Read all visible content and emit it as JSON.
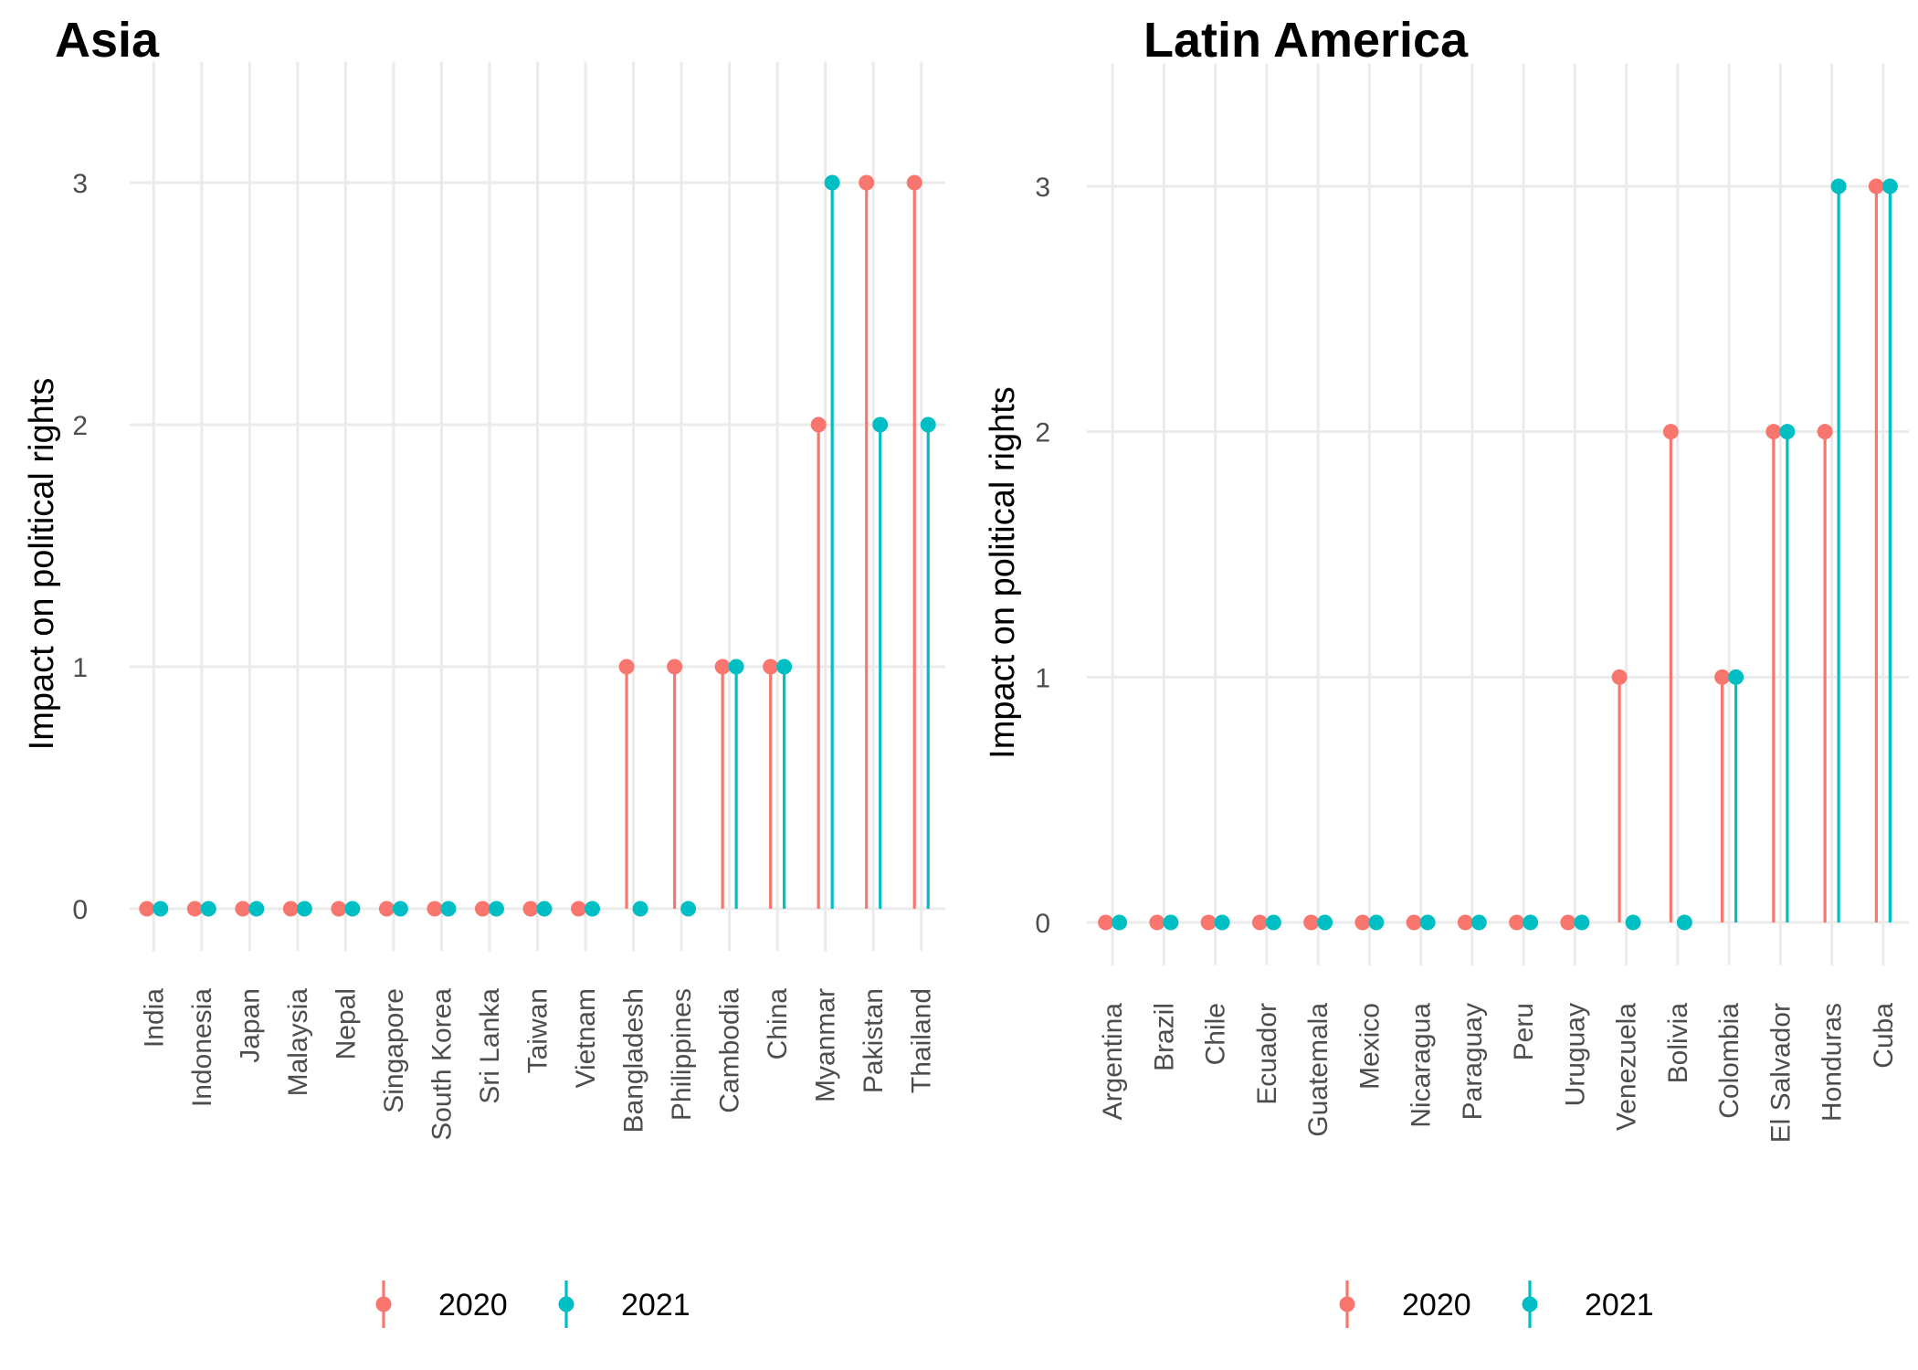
{
  "colors": {
    "s2020": "#F8766D",
    "s2021": "#00BFC4",
    "grid": "#EBEBEB"
  },
  "chart_data": [
    {
      "type": "lollipop",
      "title": "Asia",
      "xlabel": "",
      "ylabel": "Impact on political rights",
      "ylim": [
        -0.1,
        3.5
      ],
      "yticks": [
        0,
        1,
        2,
        3
      ],
      "grid": true,
      "legend": "bottom",
      "categories": [
        "India",
        "Indonesia",
        "Japan",
        "Malaysia",
        "Nepal",
        "Singapore",
        "South Korea",
        "Sri Lanka",
        "Taiwan",
        "Vietnam",
        "Bangladesh",
        "Philippines",
        "Cambodia",
        "China",
        "Myanmar",
        "Pakistan",
        "Thailand"
      ],
      "series": [
        {
          "name": "2020",
          "values": [
            0,
            0,
            0,
            0,
            0,
            0,
            0,
            0,
            0,
            0,
            1,
            1,
            1,
            1,
            2,
            3,
            3
          ]
        },
        {
          "name": "2021",
          "values": [
            0,
            0,
            0,
            0,
            0,
            0,
            0,
            0,
            0,
            0,
            0,
            0,
            1,
            1,
            3,
            2,
            2
          ]
        }
      ]
    },
    {
      "type": "lollipop",
      "title": "Latin America",
      "xlabel": "",
      "ylabel": "Impact on political rights",
      "ylim": [
        -0.1,
        3.5
      ],
      "yticks": [
        0,
        1,
        2,
        3
      ],
      "grid": true,
      "legend": "bottom",
      "categories": [
        "Argentina",
        "Brazil",
        "Chile",
        "Ecuador",
        "Guatemala",
        "Mexico",
        "Nicaragua",
        "Paraguay",
        "Peru",
        "Uruguay",
        "Venezuela",
        "Bolivia",
        "Colombia",
        "El Salvador",
        "Honduras",
        "Cuba"
      ],
      "series": [
        {
          "name": "2020",
          "values": [
            0,
            0,
            0,
            0,
            0,
            0,
            0,
            0,
            0,
            0,
            1,
            2,
            1,
            2,
            2,
            3
          ]
        },
        {
          "name": "2021",
          "values": [
            0,
            0,
            0,
            0,
            0,
            0,
            0,
            0,
            0,
            0,
            0,
            0,
            1,
            2,
            3,
            3
          ]
        }
      ]
    }
  ]
}
